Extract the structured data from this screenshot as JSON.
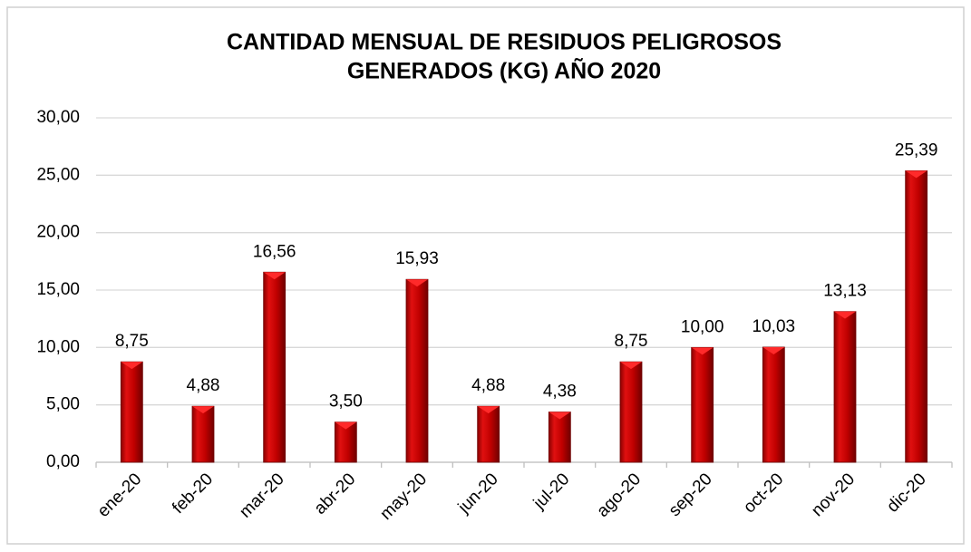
{
  "chart_data": {
    "type": "bar",
    "title": [
      "CANTIDAD MENSUAL DE RESIDUOS PELIGROSOS",
      "GENERADOS (KG) AÑO 2020"
    ],
    "categories": [
      "ene-20",
      "feb-20",
      "mar-20",
      "abr-20",
      "may-20",
      "jun-20",
      "jul-20",
      "ago-20",
      "sep-20",
      "oct-20",
      "nov-20",
      "dic-20"
    ],
    "values": [
      8.75,
      4.88,
      16.56,
      3.5,
      15.93,
      4.88,
      4.38,
      8.75,
      10,
      10.03,
      13.13,
      25.39
    ],
    "value_labels": [
      "8,75",
      "4,88",
      "16,56",
      "3,50",
      "15,93",
      "4,88",
      "4,38",
      "8,75",
      "10,00",
      "10,03",
      "13,13",
      "25,39"
    ],
    "color": "#c00000",
    "ylim": [
      0,
      30
    ],
    "yticks": [
      {
        "value": 0,
        "label": "0,00"
      },
      {
        "value": 5,
        "label": "5,00"
      },
      {
        "value": 10,
        "label": "10,00"
      },
      {
        "value": 15,
        "label": "15,00"
      },
      {
        "value": 20,
        "label": "20,00"
      },
      {
        "value": 25,
        "label": "25,00"
      },
      {
        "value": 30,
        "label": "30,00"
      }
    ],
    "grid": true
  }
}
